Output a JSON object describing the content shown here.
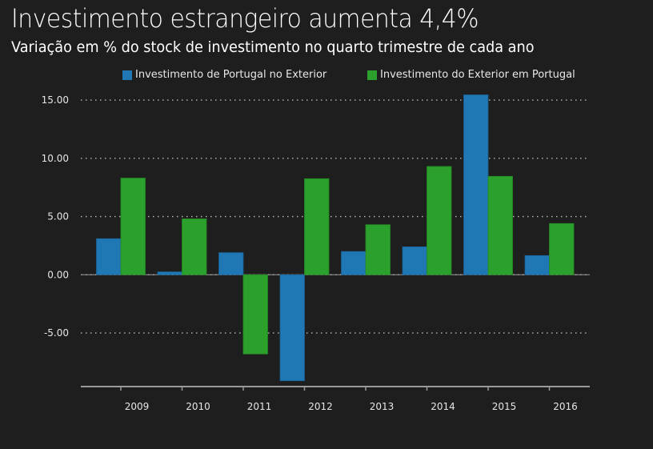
{
  "chart_data": {
    "type": "bar",
    "title": "Investimento estrangeiro aumenta 4,4%",
    "subtitle": "Variação em % do stock de investimento no quarto trimestre de cada ano",
    "xlabel": "",
    "ylabel": "",
    "categories": [
      "2009",
      "2010",
      "2011",
      "2012",
      "2013",
      "2014",
      "2015",
      "2016"
    ],
    "series": [
      {
        "name": "Investimento de Portugal no Exterior",
        "color": "#1f77b4",
        "values": [
          3.1,
          0.25,
          1.9,
          -9.1,
          2.0,
          2.4,
          15.45,
          1.65
        ]
      },
      {
        "name": "Investimento do Exterior em Portugal",
        "color": "#2ca02c",
        "values": [
          8.3,
          4.8,
          -6.8,
          8.25,
          4.3,
          9.3,
          8.45,
          4.4
        ]
      }
    ],
    "ylim": [
      -9.4,
      15.8
    ],
    "yticks": [
      -5,
      0,
      5,
      10,
      15
    ],
    "ytick_labels": [
      "-5.00",
      "0.00",
      "5.00",
      "10.00",
      "15.00"
    ],
    "grid": true,
    "legend_position": "top-right",
    "colors": {
      "background": "#1e1e1e",
      "text": "#ffffff",
      "grid": "#bbbbbb",
      "axis": "#9a9a9a"
    }
  }
}
